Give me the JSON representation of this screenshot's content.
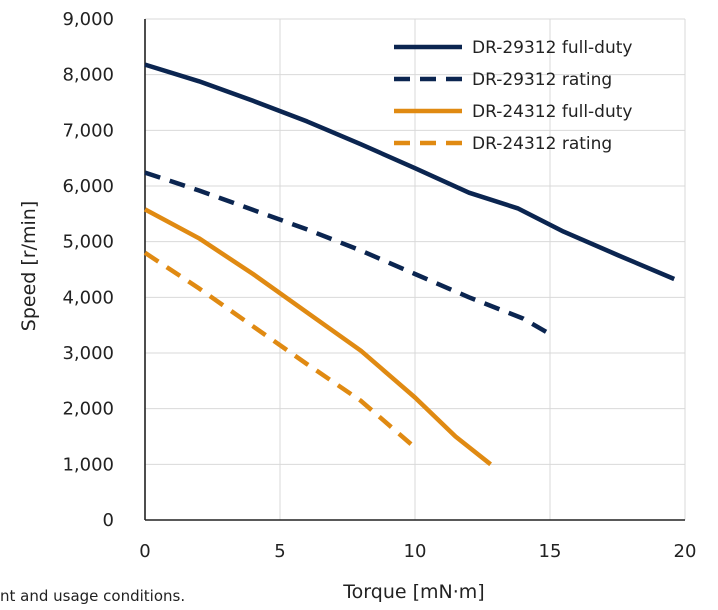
{
  "chart_data": {
    "type": "line",
    "title": "",
    "xlabel": "Torque [mN·m]",
    "ylabel": "Speed [r/min]",
    "xlim": [
      0,
      20
    ],
    "ylim": [
      0,
      9000
    ],
    "xticks": [
      0,
      5,
      10,
      15,
      20
    ],
    "yticks": [
      0,
      1000,
      2000,
      3000,
      4000,
      5000,
      6000,
      7000,
      8000,
      9000
    ],
    "xtick_labels": [
      "0",
      "5",
      "10",
      "15",
      "20"
    ],
    "ytick_labels": [
      "0",
      "1,000",
      "2,000",
      "3,000",
      "4,000",
      "5,000",
      "6,000",
      "7,000",
      "8,000",
      "9,000"
    ],
    "grid": true,
    "legend_position": "top-right",
    "series": [
      {
        "name": "DR-29312 full-duty",
        "color": "#0b2550",
        "dash": "solid",
        "points": [
          [
            0,
            8180
          ],
          [
            2,
            7880
          ],
          [
            4,
            7530
          ],
          [
            6,
            7160
          ],
          [
            8,
            6750
          ],
          [
            10,
            6320
          ],
          [
            12,
            5880
          ],
          [
            13.8,
            5600
          ],
          [
            15.5,
            5180
          ],
          [
            17.5,
            4760
          ],
          [
            19.6,
            4330
          ]
        ]
      },
      {
        "name": "DR-29312 rating",
        "color": "#0b2550",
        "dash": "dashed",
        "points": [
          [
            0,
            6240
          ],
          [
            2,
            5920
          ],
          [
            4,
            5570
          ],
          [
            6,
            5220
          ],
          [
            8,
            4840
          ],
          [
            10,
            4420
          ],
          [
            12,
            4000
          ],
          [
            14,
            3620
          ],
          [
            15,
            3340
          ]
        ]
      },
      {
        "name": "DR-24312 full-duty",
        "color": "#e08a12",
        "dash": "solid",
        "points": [
          [
            0,
            5580
          ],
          [
            2,
            5060
          ],
          [
            4,
            4420
          ],
          [
            6,
            3730
          ],
          [
            8,
            3040
          ],
          [
            10,
            2200
          ],
          [
            11.5,
            1500
          ],
          [
            12.8,
            1000
          ]
        ]
      },
      {
        "name": "DR-24312 rating",
        "color": "#e08a12",
        "dash": "dashed",
        "points": [
          [
            0,
            4800
          ],
          [
            2,
            4160
          ],
          [
            4,
            3480
          ],
          [
            6,
            2800
          ],
          [
            8,
            2140
          ],
          [
            10,
            1300
          ]
        ]
      }
    ]
  },
  "footnote": "nt and usage conditions."
}
